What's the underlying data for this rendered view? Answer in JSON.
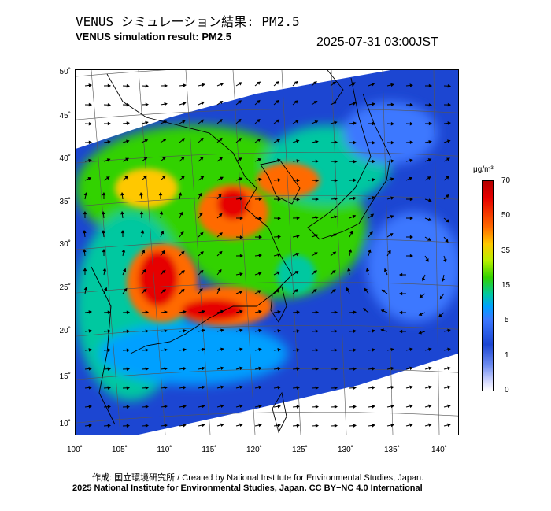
{
  "header": {
    "title_jp": "VENUS シミュレーション結果: PM2.5",
    "title_en": "VENUS simulation result: PM2.5",
    "timestamp": "2025-07-31 03:00JST"
  },
  "map": {
    "latitude_labels": [
      "50˚",
      "45˚",
      "40˚",
      "35˚",
      "30˚",
      "25˚",
      "20˚",
      "15˚",
      "10˚"
    ],
    "longitude_labels": [
      "100˚",
      "105˚",
      "110˚",
      "115˚",
      "120˚",
      "125˚",
      "130˚",
      "135˚",
      "140˚"
    ],
    "field": "PM2.5 concentration with wind vectors",
    "colors": {
      "very_high": "#e60000",
      "high": "#ff6a00",
      "medium": "#32d200",
      "low": "#00a0ff",
      "background": "#1c46d2"
    }
  },
  "colorbar": {
    "unit": "μg/m³",
    "ticks": [
      "70",
      "50",
      "35",
      "15",
      "5",
      "1",
      "0"
    ]
  },
  "credits": {
    "jp": "作成: 国立環境研究所 / Created by National Institute for Environmental Studies, Japan.",
    "en": "2025 National Institute for Environmental Studies, Japan. CC BY−NC 4.0 International"
  }
}
